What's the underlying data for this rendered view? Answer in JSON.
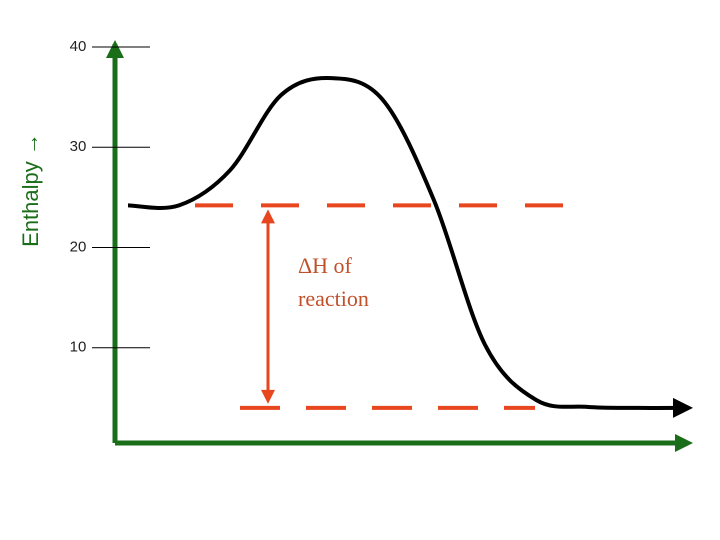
{
  "chart_data": {
    "type": "line",
    "y_label": "Enthalpy →",
    "annotation": [
      "ΔH of",
      "reaction"
    ],
    "categories": [
      null,
      null,
      null,
      null,
      null,
      null,
      null,
      null,
      null,
      null,
      null,
      null
    ],
    "values": [
      24.2,
      24.2,
      27.7,
      35.2,
      36.9,
      34.7,
      24.7,
      10.3,
      4.8,
      4.1,
      4.0,
      4.0
    ],
    "color": "#000000",
    "axis_color": "#1a6e1a",
    "level_color": "#e8461e",
    "ylim": [
      0,
      40
    ],
    "yticks": [
      10,
      20,
      30,
      40
    ]
  }
}
